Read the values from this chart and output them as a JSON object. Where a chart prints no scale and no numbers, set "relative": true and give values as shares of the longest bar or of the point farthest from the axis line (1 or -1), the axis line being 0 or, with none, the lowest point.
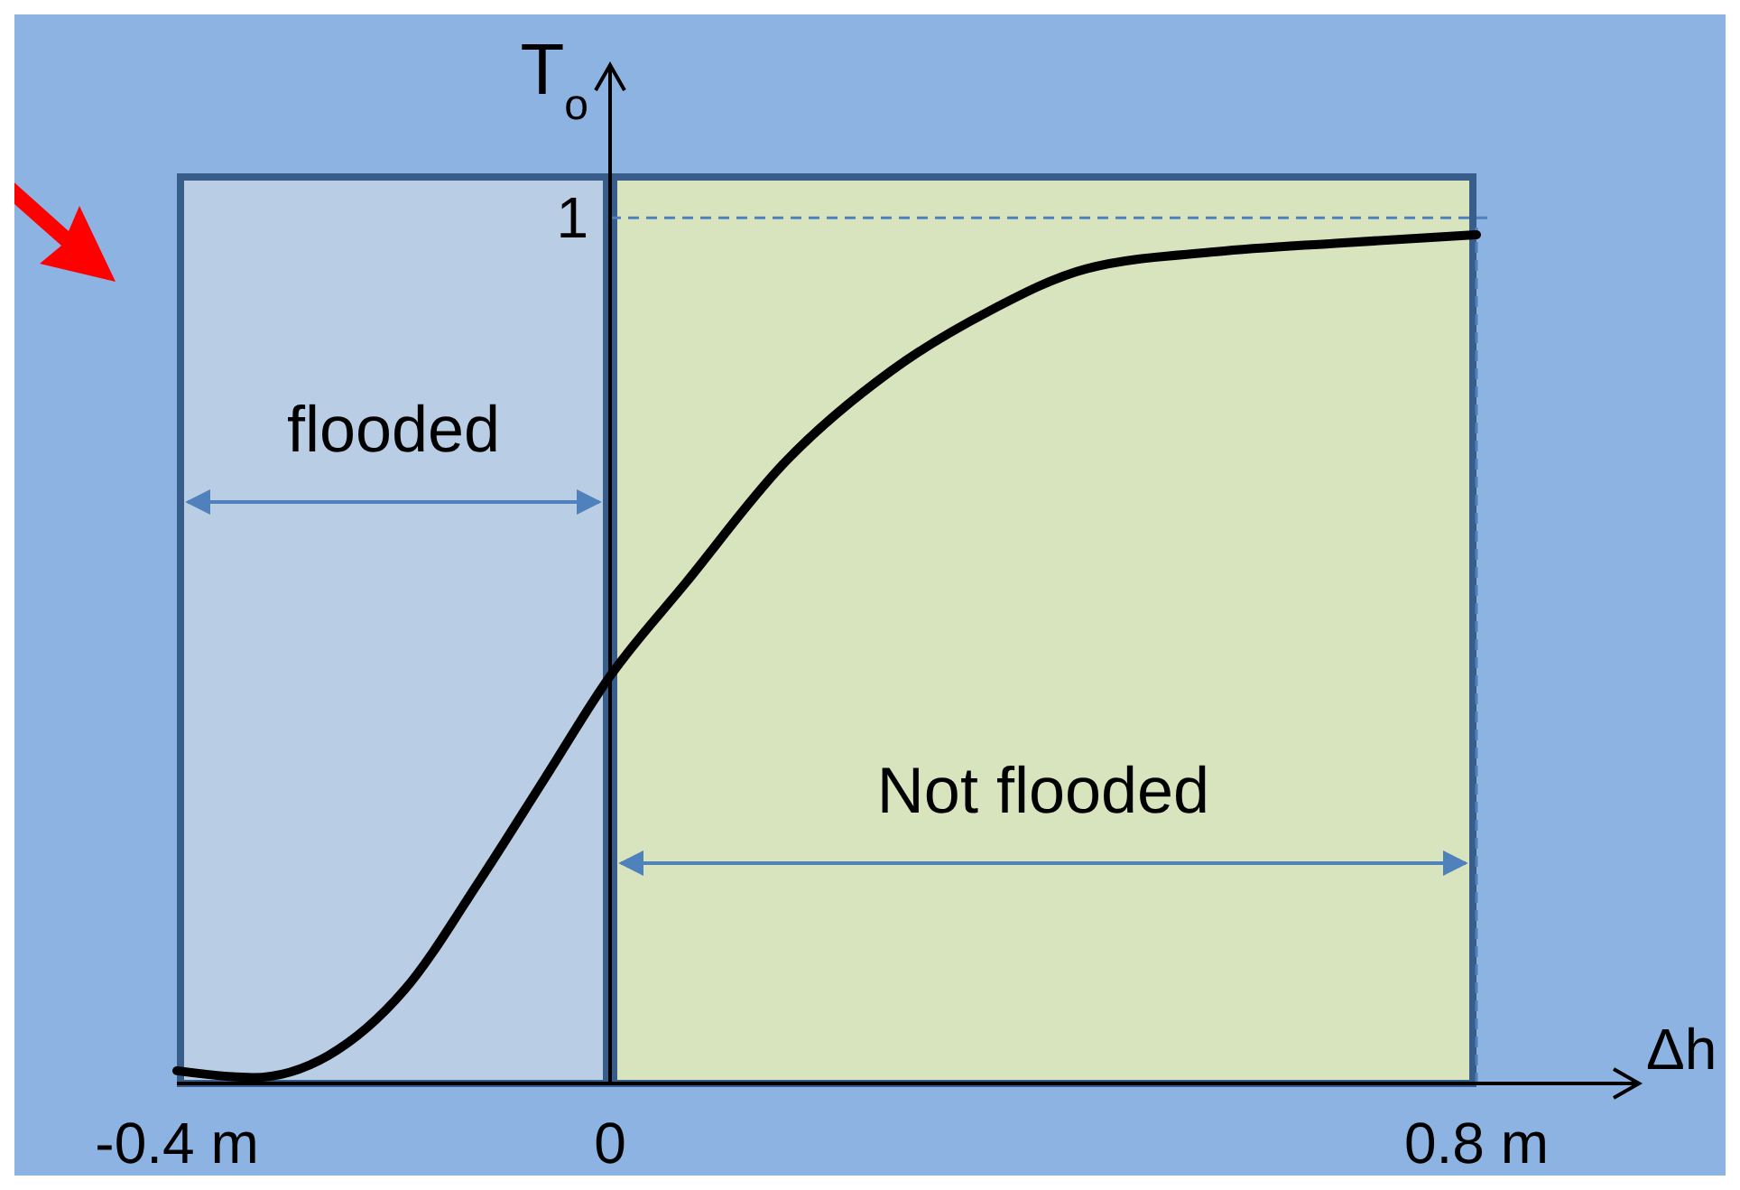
{
  "chart_data": {
    "type": "line",
    "xlabel": "Δh",
    "ylabel": "T$_{o}$",
    "relative": true,
    "xlim": [
      -0.4,
      0.95
    ],
    "xticks": [
      {
        "value": -0.4,
        "label": "-0.4 m"
      },
      0,
      {
        "value": 0.8,
        "label": "0.8 m"
      }
    ],
    "x": [
      -0.4,
      -0.33,
      -0.26,
      -0.19,
      -0.12,
      -0.06,
      0,
      0.07,
      0.16,
      0.26,
      0.35,
      0.44,
      0.56,
      0.67,
      0.8
    ],
    "series": [
      {
        "color": "#000000",
        "values": [
          0.015,
          0.007,
          0.033,
          0.11,
          0.24,
          0.36,
          0.48,
          0.59,
          0.73,
          0.84,
          0.91,
          0.96,
          0.98,
          0.99,
          1
        ]
      }
    ],
    "bands": [
      {
        "axis": "x",
        "from": -0.4,
        "to": 0,
        "label": "flooded",
        "color": "#b9cde5"
      },
      {
        "axis": "x",
        "from": 0,
        "to": 0.8,
        "label": "Not flooded",
        "color": "#d7e4bd"
      }
    ],
    "ref_lines": [
      {
        "axis": "y",
        "value": 1.02,
        "line_style": "dashed",
        "color": "#4f81bd"
      },
      {
        "axis": "x",
        "value": 0.8,
        "line_style": "dashed",
        "color": "#4f81bd"
      }
    ],
    "annotations": [
      "1"
    ],
    "line_style": "solid"
  }
}
